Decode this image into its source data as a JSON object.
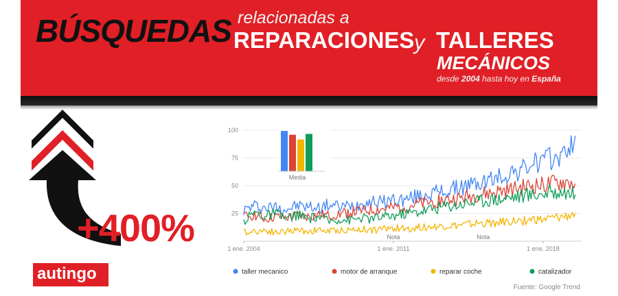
{
  "banner": {
    "title_main": "BÚSQUEDAS",
    "subtitle_small": "relacionadas a",
    "title_part1": "REPARACIONES",
    "connector": "y",
    "title_part2": "TALLERES",
    "title_part3": "MECÁNICOS",
    "date_range": {
      "pre": "desde",
      "year": "2004",
      "mid": "hasta hoy en",
      "country": "España"
    }
  },
  "growth_label": "+400%",
  "logo_text": "autingo",
  "colors": {
    "banner_red": "#e11f26",
    "taller_mecanico": "#4285f4",
    "motor_de_arranque": "#db4437",
    "reparar_coche": "#f4b400",
    "catalizador": "#0f9d58"
  },
  "chart_data": {
    "type": "line",
    "y_ticks": [
      25,
      50,
      75,
      100
    ],
    "ylim": [
      0,
      100
    ],
    "x_ticks": [
      "1 ene. 2004",
      "1 ene. 2011",
      "1 ene. 2018"
    ],
    "xlim": [
      2004,
      2019.8
    ],
    "annotations": [
      "Nota",
      "Nota"
    ],
    "annotation_x": [
      2011.0,
      2015.2
    ],
    "source": "Fuente: Google Trend",
    "inset": {
      "label": "Media",
      "values": [
        95,
        86,
        75,
        88
      ]
    },
    "series": [
      {
        "name": "taller mecanico",
        "color": "#4285f4",
        "x": [
          2004,
          2004.5,
          2005,
          2005.5,
          2006,
          2006.5,
          2007,
          2007.5,
          2008,
          2008.5,
          2009,
          2009.5,
          2010,
          2010.5,
          2011,
          2011.5,
          2012,
          2012.5,
          2013,
          2013.5,
          2014,
          2014.5,
          2015,
          2015.5,
          2016,
          2016.5,
          2017,
          2017.5,
          2018,
          2018.5,
          2019,
          2019.5
        ],
        "y": [
          28,
          32,
          30,
          31,
          29,
          32,
          31,
          30,
          33,
          31,
          32,
          34,
          36,
          35,
          38,
          37,
          40,
          42,
          44,
          45,
          48,
          50,
          52,
          55,
          58,
          62,
          64,
          70,
          72,
          75,
          78,
          95
        ]
      },
      {
        "name": "motor de arranque",
        "color": "#db4437",
        "x": [
          2004,
          2004.5,
          2005,
          2005.5,
          2006,
          2006.5,
          2007,
          2007.5,
          2008,
          2008.5,
          2009,
          2009.5,
          2010,
          2010.5,
          2011,
          2011.5,
          2012,
          2012.5,
          2013,
          2013.5,
          2014,
          2014.5,
          2015,
          2015.5,
          2016,
          2016.5,
          2017,
          2017.5,
          2018,
          2018.5,
          2019,
          2019.5
        ],
        "y": [
          22,
          24,
          20,
          22,
          21,
          23,
          22,
          24,
          23,
          25,
          26,
          27,
          28,
          29,
          30,
          31,
          33,
          34,
          36,
          37,
          38,
          40,
          42,
          43,
          45,
          46,
          48,
          50,
          50,
          52,
          53,
          52
        ]
      },
      {
        "name": "reparar coche",
        "color": "#f4b400",
        "x": [
          2004,
          2004.5,
          2005,
          2005.5,
          2006,
          2006.5,
          2007,
          2007.5,
          2008,
          2008.5,
          2009,
          2009.5,
          2010,
          2010.5,
          2011,
          2011.5,
          2012,
          2012.5,
          2013,
          2013.5,
          2014,
          2014.5,
          2015,
          2015.5,
          2016,
          2016.5,
          2017,
          2017.5,
          2018,
          2018.5,
          2019,
          2019.5
        ],
        "y": [
          8,
          9,
          10,
          8,
          9,
          10,
          9,
          10,
          9,
          10,
          10,
          11,
          10,
          11,
          12,
          11,
          12,
          13,
          13,
          14,
          14,
          15,
          16,
          16,
          17,
          18,
          18,
          20,
          19,
          21,
          22,
          25
        ]
      },
      {
        "name": "catalizador",
        "color": "#0f9d58",
        "x": [
          2004,
          2004.5,
          2005,
          2005.5,
          2006,
          2006.5,
          2007,
          2007.5,
          2008,
          2008.5,
          2009,
          2009.5,
          2010,
          2010.5,
          2011,
          2011.5,
          2012,
          2012.5,
          2013,
          2013.5,
          2014,
          2014.5,
          2015,
          2015.5,
          2016,
          2016.5,
          2017,
          2017.5,
          2018,
          2018.5,
          2019,
          2019.5
        ],
        "y": [
          18,
          26,
          22,
          25,
          20,
          24,
          20,
          22,
          18,
          20,
          19,
          21,
          20,
          22,
          23,
          25,
          26,
          28,
          30,
          32,
          33,
          35,
          36,
          38,
          38,
          40,
          41,
          42,
          43,
          44,
          45,
          42
        ]
      }
    ]
  }
}
